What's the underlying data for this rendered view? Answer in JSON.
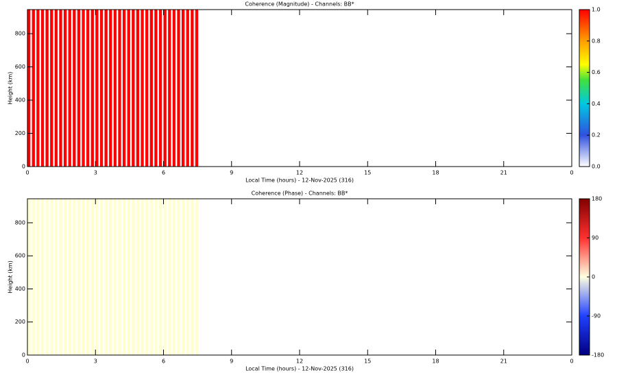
{
  "chart_data": [
    {
      "type": "heatmap",
      "title": "Coherence (Magnitude) - Channels: BB*",
      "xlabel": "Local Time (hours) - 12-Nov-2025 (316)",
      "ylabel": "Height (km)",
      "x": [
        0.1,
        0.3,
        0.5,
        0.7,
        0.9,
        1.1,
        1.3,
        1.5,
        1.7,
        1.9,
        2.1,
        2.3,
        2.5,
        2.7,
        2.9,
        3.1,
        3.3,
        3.5,
        3.7,
        3.9,
        4.1,
        4.3,
        4.5,
        4.7,
        4.9,
        5.1,
        5.3,
        5.5,
        5.7,
        5.9,
        6.1,
        6.3,
        6.5,
        6.7,
        6.9,
        7.1,
        7.3,
        7.5
      ],
      "values": [
        1,
        1,
        1,
        1,
        1,
        1,
        1,
        1,
        1,
        1,
        1,
        1,
        1,
        1,
        1,
        1,
        1,
        1,
        1,
        1,
        1,
        1,
        1,
        1,
        1,
        1,
        1,
        1,
        1,
        1,
        1,
        1,
        1,
        1,
        1,
        1,
        1,
        1
      ],
      "color": "#ff0000",
      "xlim": [
        0,
        24
      ],
      "xticks": [
        0,
        3,
        6,
        9,
        12,
        15,
        18,
        21,
        {
          "value": 24,
          "label": "0"
        }
      ],
      "ylim": [
        0,
        945
      ],
      "yticks": [
        0,
        200,
        400,
        600,
        800
      ],
      "zlim": [
        0,
        1
      ],
      "zticks": [
        {
          "value": 0,
          "label": "0.0"
        },
        {
          "value": 0.2,
          "label": "0.2"
        },
        {
          "value": 0.4,
          "label": "0.4"
        },
        {
          "value": 0.6,
          "label": "0.6"
        },
        {
          "value": 0.8,
          "label": "0.8"
        },
        {
          "value": 1,
          "label": "1.0"
        }
      ],
      "colorbar": "magnitude"
    },
    {
      "type": "heatmap",
      "title": "Coherence (Phase) - Channels: BB*",
      "xlabel": "Local Time (hours) - 12-Nov-2025 (316)",
      "ylabel": "Height (km)",
      "x": [
        0.1,
        0.3,
        0.5,
        0.7,
        0.9,
        1.1,
        1.3,
        1.5,
        1.7,
        1.9,
        2.1,
        2.3,
        2.5,
        2.7,
        2.9,
        3.1,
        3.3,
        3.5,
        3.7,
        3.9,
        4.1,
        4.3,
        4.5,
        4.7,
        4.9,
        5.1,
        5.3,
        5.5,
        5.7,
        5.9,
        6.1,
        6.3,
        6.5,
        6.7,
        6.9,
        7.1,
        7.3,
        7.5
      ],
      "values": [
        0,
        0,
        0,
        0,
        0,
        0,
        0,
        0,
        0,
        0,
        0,
        0,
        0,
        0,
        0,
        0,
        0,
        0,
        0,
        0,
        0,
        0,
        0,
        0,
        0,
        0,
        0,
        0,
        0,
        0,
        0,
        0,
        0,
        0,
        0,
        0,
        0,
        0
      ],
      "color": "#ffffd0",
      "xlim": [
        0,
        24
      ],
      "xticks": [
        0,
        3,
        6,
        9,
        12,
        15,
        18,
        21,
        {
          "value": 24,
          "label": "0"
        }
      ],
      "ylim": [
        0,
        945
      ],
      "yticks": [
        0,
        200,
        400,
        600,
        800
      ],
      "zlim": [
        -180,
        180
      ],
      "zticks": [
        -180,
        -90,
        0,
        90,
        180
      ],
      "colorbar": "phase"
    }
  ]
}
